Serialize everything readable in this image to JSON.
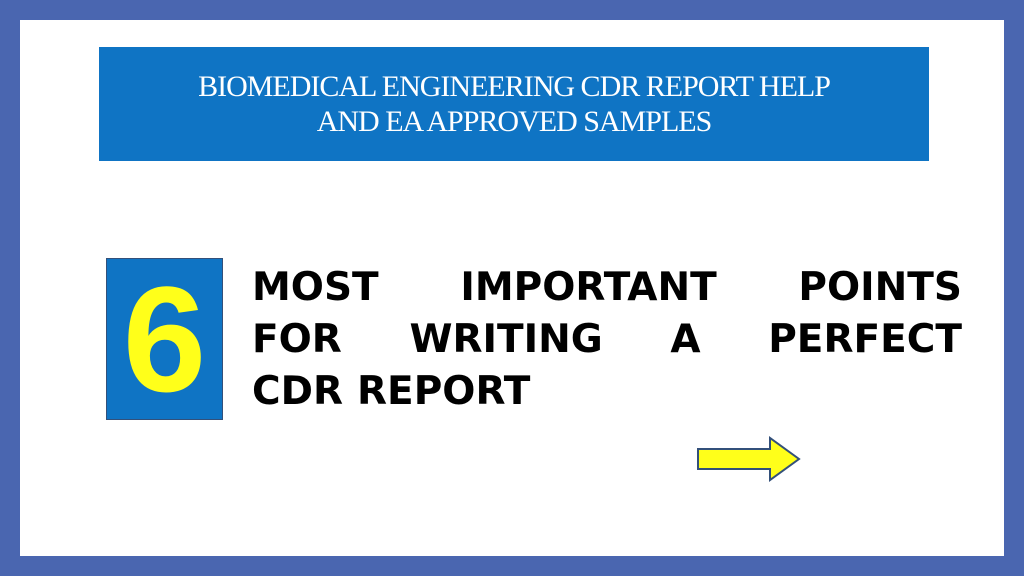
{
  "title": {
    "line1": "BIOMEDICAL ENGINEERING CDR REPORT HELP",
    "line2": "AND EA APPROVED SAMPLES"
  },
  "number": "6",
  "heading": {
    "line1": [
      "MOST",
      "IMPORTANT",
      "POINTS"
    ],
    "line2": [
      "FOR",
      "WRITING",
      "A",
      "PERFECT"
    ],
    "line3": [
      "CDR",
      "REPORT"
    ]
  },
  "icons": {
    "next": "right-arrow-icon"
  },
  "colors": {
    "frame": "#4a66b0",
    "banner": "#0f74c4",
    "digit": "#ffff1a",
    "arrow_fill": "#ffff1a",
    "arrow_stroke": "#33507a"
  }
}
